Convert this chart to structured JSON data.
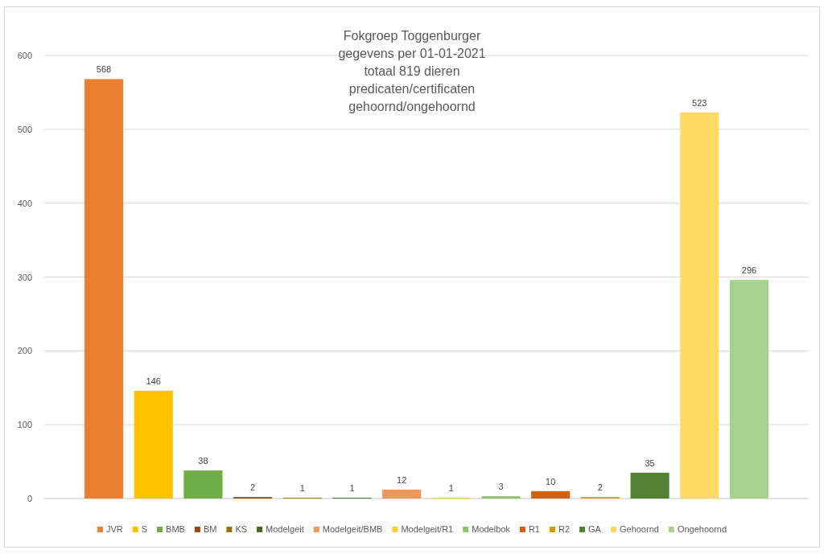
{
  "chart_data": {
    "type": "bar",
    "title": "Fokgroep Toggenburger\ngegevens per 01-01-2021\ntotaal 819 dieren\npredicaten/certificaten\ngehoornd/ongehoornd",
    "categories": [
      null
    ],
    "series": [
      {
        "name": "JVR",
        "color": "#ed7d31",
        "values": [
          568
        ]
      },
      {
        "name": "S",
        "color": "#ffc000",
        "values": [
          146
        ]
      },
      {
        "name": "BMB",
        "color": "#70ad47",
        "values": [
          38
        ]
      },
      {
        "name": "BM",
        "color": "#9e480e",
        "values": [
          2
        ]
      },
      {
        "name": "KS",
        "color": "#997300",
        "values": [
          1
        ]
      },
      {
        "name": "Modelgeit",
        "color": "#43682b",
        "values": [
          1
        ]
      },
      {
        "name": "Modelgeit/BMB",
        "color": "#f1975a",
        "values": [
          12
        ]
      },
      {
        "name": "Modelgeit/R1",
        "color": "#ffcd33",
        "values": [
          1
        ]
      },
      {
        "name": "Modelbok",
        "color": "#8cc168",
        "values": [
          3
        ]
      },
      {
        "name": "R1",
        "color": "#d26012",
        "values": [
          10
        ]
      },
      {
        "name": "R2",
        "color": "#d19d00",
        "values": [
          2
        ]
      },
      {
        "name": "GA",
        "color": "#548235",
        "values": [
          35
        ]
      },
      {
        "name": "Gehoornd",
        "color": "#ffd966",
        "values": [
          523
        ]
      },
      {
        "name": "Ongehoornd",
        "color": "#a9d18e",
        "values": [
          296
        ]
      }
    ],
    "ylim": [
      0,
      600
    ],
    "yticks": [
      0,
      100,
      200,
      300,
      400,
      500,
      600
    ],
    "grid": "y",
    "data_labels": true,
    "legend": "bottom",
    "tick_labels": "y"
  }
}
